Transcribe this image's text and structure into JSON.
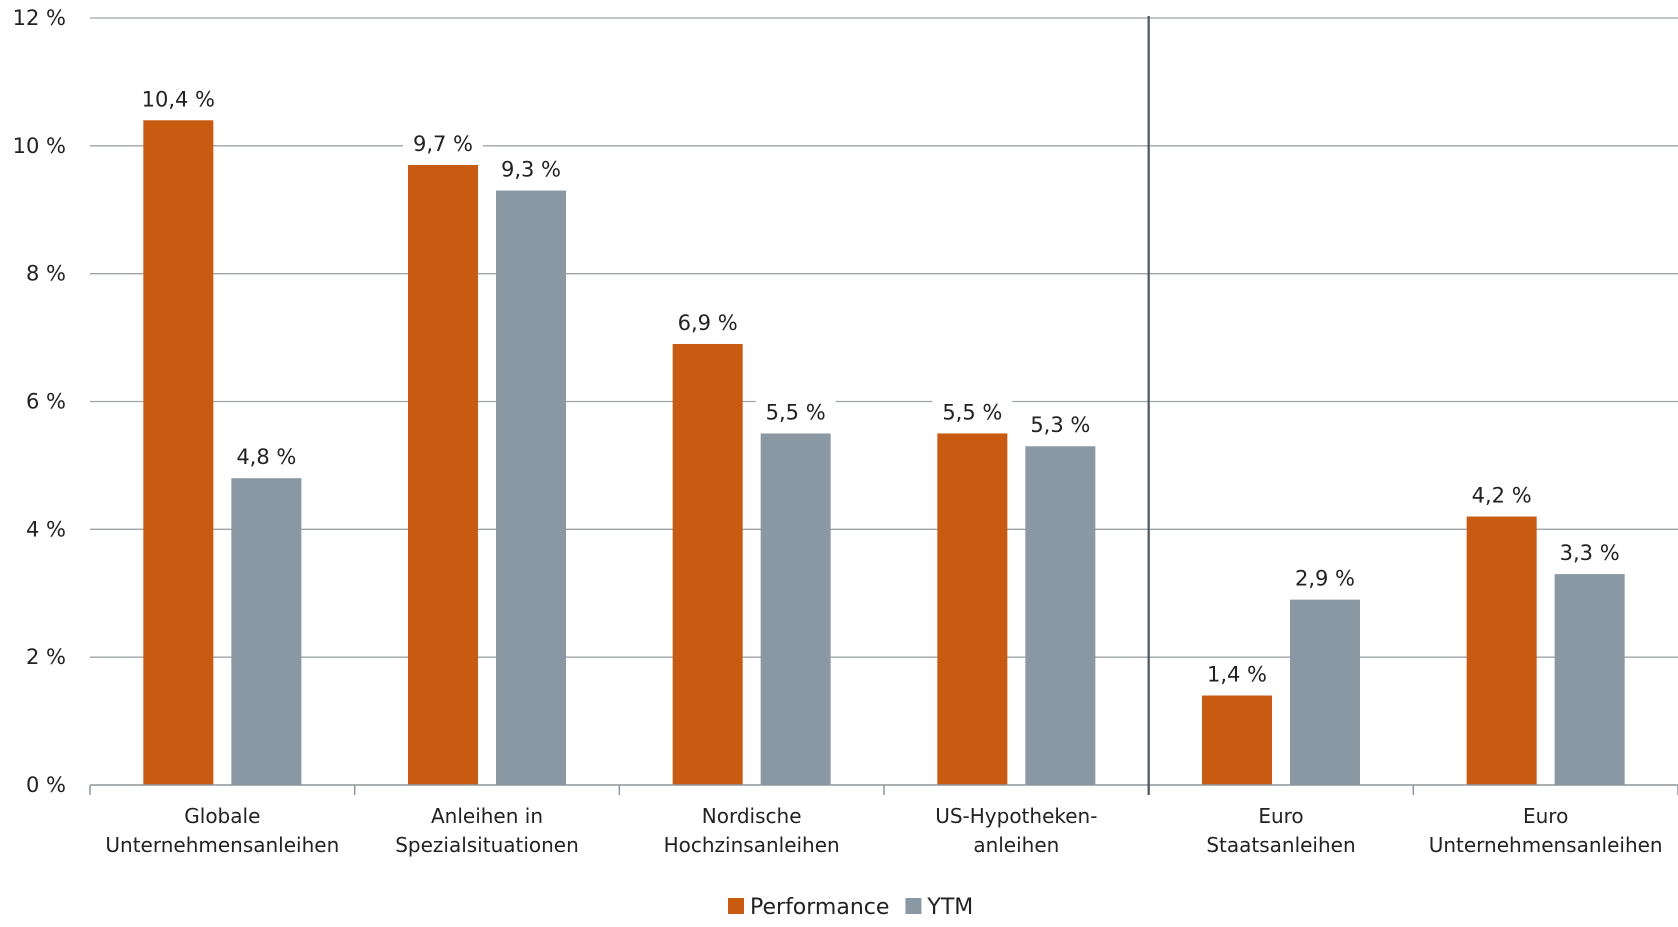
{
  "chart_data": {
    "type": "bar",
    "categories": [
      [
        "Globale",
        "Unternehmensanleihen"
      ],
      [
        "Anleihen in",
        "Spezialsituationen"
      ],
      [
        "Nordische",
        "Hochzinsanleihen"
      ],
      [
        "US-Hypotheken-",
        "anleihen"
      ],
      [
        "Euro",
        "Staatsanleihen"
      ],
      [
        "Euro",
        "Unternehmensanleihen"
      ]
    ],
    "series": [
      {
        "name": "Performance",
        "color": "#c85a12",
        "values": [
          10.4,
          9.7,
          6.9,
          5.5,
          1.4,
          4.2
        ],
        "labels": [
          "10,4 %",
          "9,7 %",
          "6,9 %",
          "5,5 %",
          "1,4 %",
          "4,2 %"
        ]
      },
      {
        "name": "YTM",
        "color": "#8a98a3",
        "values": [
          4.8,
          9.3,
          5.5,
          5.3,
          2.9,
          3.3
        ],
        "labels": [
          "4,8 %",
          "9,3 %",
          "5,5 %",
          "5,3 %",
          "2,9 %",
          "3,3 %"
        ]
      }
    ],
    "yticks": [
      0,
      2,
      4,
      6,
      8,
      10,
      12
    ],
    "ytick_labels": [
      "0 %",
      "2 %",
      "4 %",
      "6 %",
      "8 %",
      "10 %",
      "12 %"
    ],
    "ylim": [
      0,
      12
    ],
    "grid": true,
    "divider_after_category": 3,
    "legend_position": "bottom-center",
    "title": "",
    "xlabel": "",
    "ylabel": ""
  }
}
